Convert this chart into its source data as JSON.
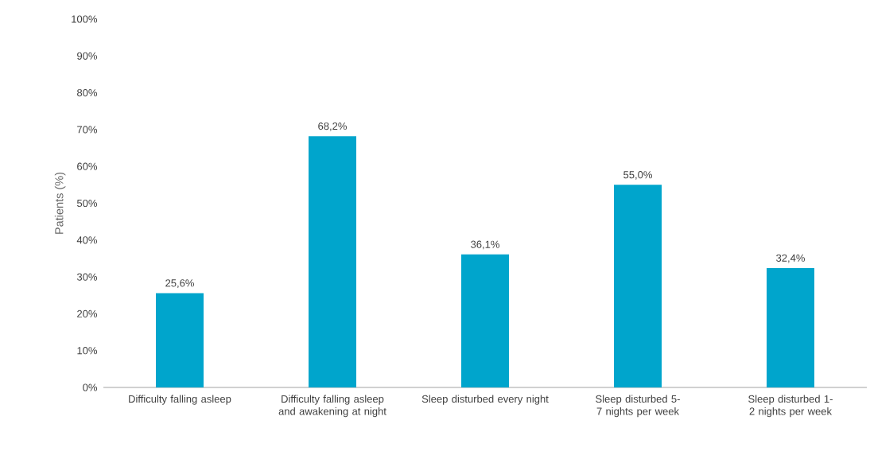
{
  "chart_data": {
    "type": "bar",
    "ylabel": "Patients (%)",
    "categories": [
      "Difficulty falling asleep",
      "Difficulty falling asleep and awakening at night",
      "Sleep disturbed every night",
      "Sleep disturbed 5-7 nights per week",
      "Sleep disturbed 1-2 nights per week"
    ],
    "values": [
      25.6,
      68.2,
      36.1,
      55.0,
      32.4
    ],
    "value_labels": [
      "25,6%",
      "68,2%",
      "36,1%",
      "55,0%",
      "32,4%"
    ],
    "color": "#00a5cc",
    "ylim": [
      0,
      100
    ],
    "yticks": [
      {
        "value": 0,
        "label": "0%"
      },
      {
        "value": 10,
        "label": "10%"
      },
      {
        "value": 20,
        "label": "20%"
      },
      {
        "value": 30,
        "label": "30%"
      },
      {
        "value": 40,
        "label": "40%"
      },
      {
        "value": 50,
        "label": "50%"
      },
      {
        "value": 60,
        "label": "60%"
      },
      {
        "value": 70,
        "label": "70%"
      },
      {
        "value": 80,
        "label": "80%"
      },
      {
        "value": 90,
        "label": "90%"
      },
      {
        "value": 100,
        "label": "100%"
      }
    ]
  }
}
